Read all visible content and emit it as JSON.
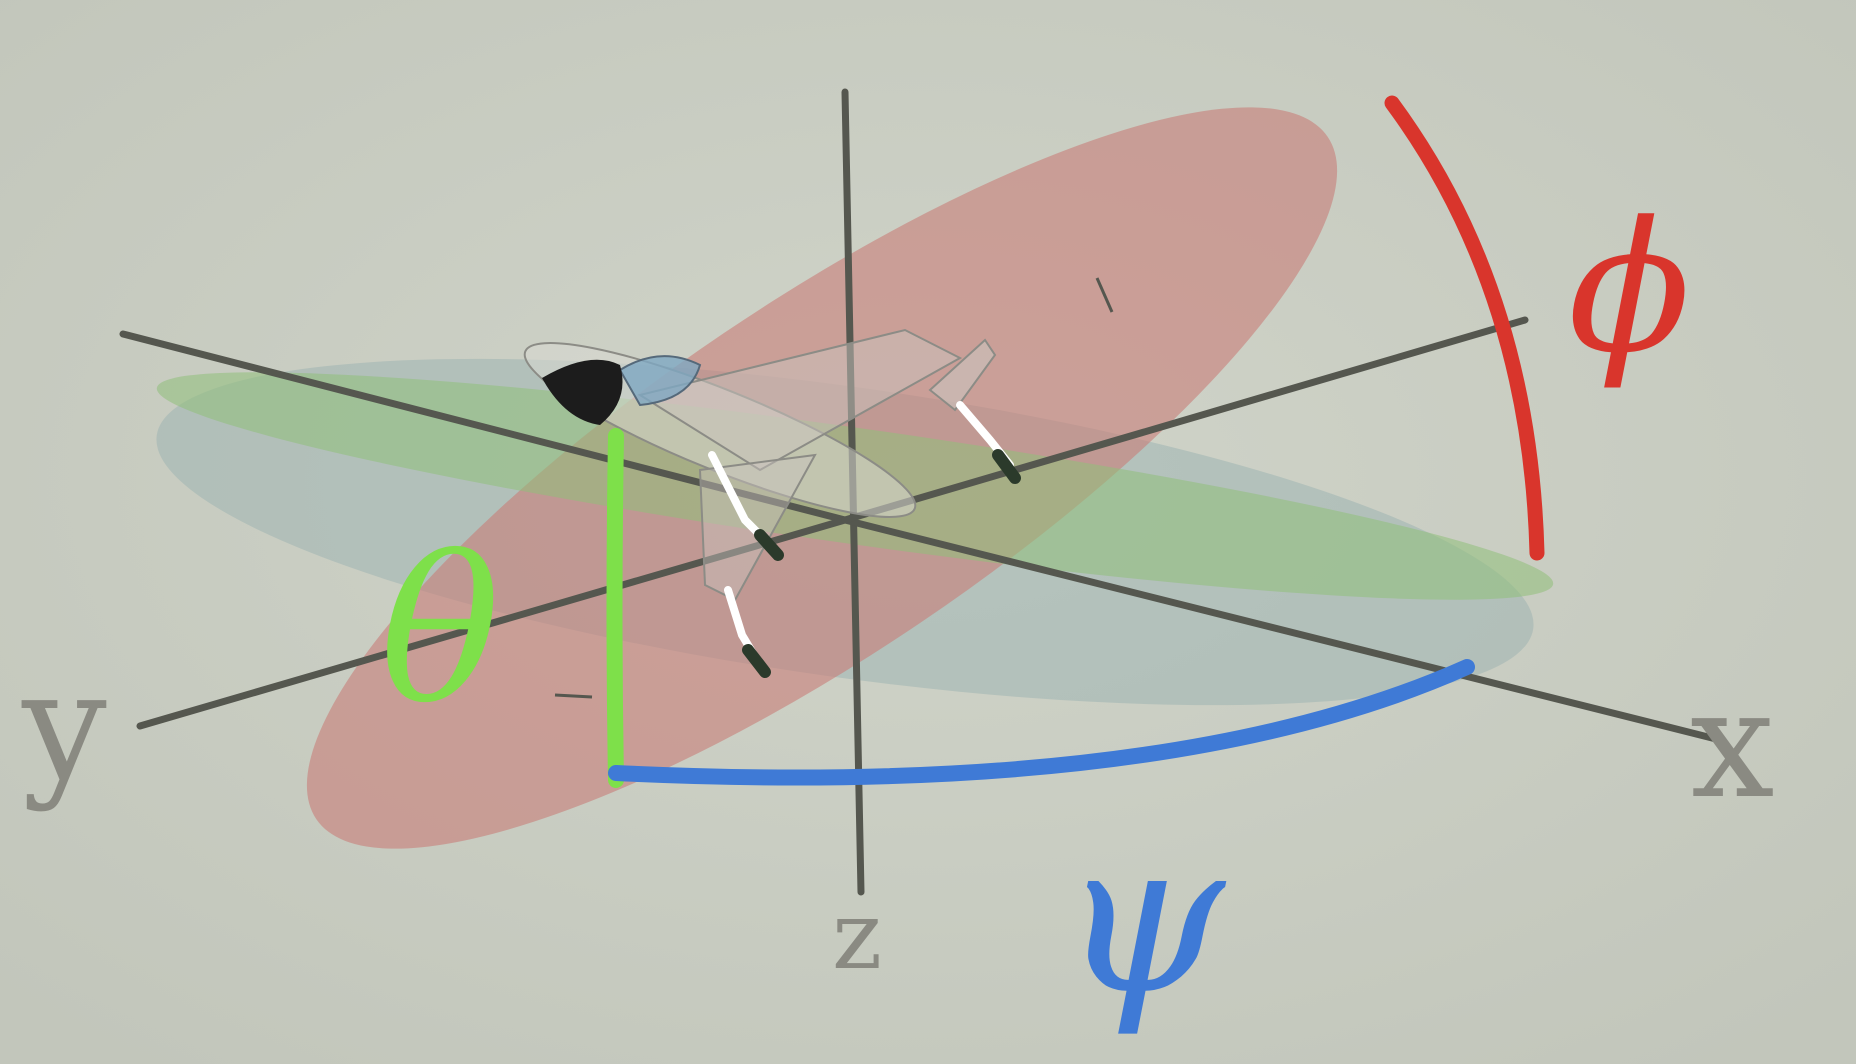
{
  "axes": {
    "x": {
      "label": "x"
    },
    "y": {
      "label": "y"
    },
    "z": {
      "label": "z"
    }
  },
  "angles": {
    "phi": {
      "symbol": "ϕ",
      "color": "#d9352c"
    },
    "theta": {
      "symbol": "θ",
      "color": "#7ee04a"
    },
    "psi": {
      "symbol": "ψ",
      "color": "#3f7ad6"
    }
  },
  "planes": {
    "roll_plane": {
      "color": "#c87d78"
    },
    "pitch_plane": {
      "color": "#8fc07a"
    },
    "yaw_plane": {
      "color": "#9fb4b2"
    }
  },
  "aircraft": {
    "icon": "jet-aircraft-icon"
  },
  "background_color": "#c7cbc0"
}
